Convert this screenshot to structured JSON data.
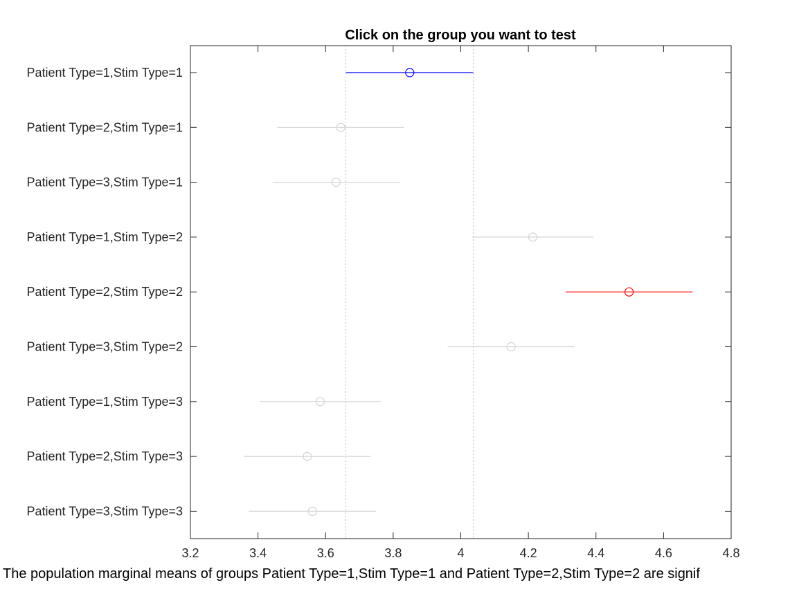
{
  "chart_data": {
    "type": "scatter",
    "title": "Click on the group you want to test",
    "xlabel": "The population marginal means of groups Patient Type=1,Stim Type=1 and Patient Type=2,Stim Type=2 are signif",
    "ylabel": "",
    "xlim": [
      3.2,
      4.8
    ],
    "xticks": [
      3.2,
      3.4,
      3.6,
      3.8,
      4,
      4.2,
      4.4,
      4.6,
      4.8
    ],
    "xtick_labels": [
      "3.2",
      "3.4",
      "3.6",
      "3.8",
      "4",
      "4.2",
      "4.4",
      "4.6",
      "4.8"
    ],
    "grid": false,
    "reference_lines_x": [
      3.66,
      4.037
    ],
    "groups": [
      {
        "label": "Patient Type=1,Stim Type=1",
        "mean": 3.849,
        "lower": 3.66,
        "upper": 4.037,
        "color": "#0000ff",
        "state": "selected"
      },
      {
        "label": "Patient Type=2,Stim Type=1",
        "mean": 3.645,
        "lower": 3.457,
        "upper": 3.833,
        "color": "#d3d3d3",
        "state": "not-significant"
      },
      {
        "label": "Patient Type=3,Stim Type=1",
        "mean": 3.631,
        "lower": 3.443,
        "upper": 3.819,
        "color": "#d3d3d3",
        "state": "not-significant"
      },
      {
        "label": "Patient Type=1,Stim Type=2",
        "mean": 4.213,
        "lower": 4.034,
        "upper": 4.393,
        "color": "#d3d3d3",
        "state": "not-significant"
      },
      {
        "label": "Patient Type=2,Stim Type=2",
        "mean": 4.498,
        "lower": 4.31,
        "upper": 4.686,
        "color": "#ff0000",
        "state": "significant"
      },
      {
        "label": "Patient Type=3,Stim Type=2",
        "mean": 4.149,
        "lower": 3.961,
        "upper": 4.337,
        "color": "#d3d3d3",
        "state": "not-significant"
      },
      {
        "label": "Patient Type=1,Stim Type=3",
        "mean": 3.584,
        "lower": 3.406,
        "upper": 3.763,
        "color": "#d3d3d3",
        "state": "not-significant"
      },
      {
        "label": "Patient Type=2,Stim Type=3",
        "mean": 3.546,
        "lower": 3.358,
        "upper": 3.734,
        "color": "#d3d3d3",
        "state": "not-significant"
      },
      {
        "label": "Patient Type=3,Stim Type=3",
        "mean": 3.561,
        "lower": 3.373,
        "upper": 3.749,
        "color": "#d3d3d3",
        "state": "not-significant"
      }
    ]
  }
}
